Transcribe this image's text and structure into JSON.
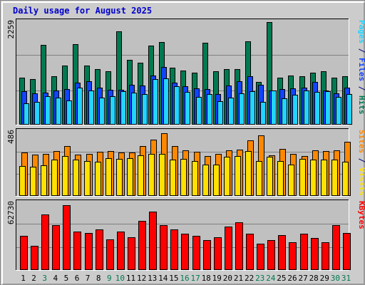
{
  "title": "Daily usage for August 2025",
  "colors": {
    "hits": "#007a50",
    "files": "#1144ff",
    "pages": "#22d4ff",
    "visits": "#ffe000",
    "sites": "#ff8800",
    "kbytes": "#ff0000",
    "weekday_label": "#000000",
    "weekend_label": "#007a50"
  },
  "chart_data": [
    {
      "type": "bar",
      "max_label": "2259",
      "ylim": [
        0,
        2259
      ],
      "categories": [
        "1",
        "2",
        "3",
        "4",
        "5",
        "6",
        "7",
        "8",
        "9",
        "10",
        "11",
        "12",
        "13",
        "14",
        "15",
        "16",
        "17",
        "18",
        "19",
        "20",
        "21",
        "22",
        "23",
        "24",
        "25",
        "26",
        "27",
        "28",
        "29",
        "30",
        "31"
      ],
      "weekend_days": [
        "3",
        "9",
        "10",
        "16",
        "17",
        "23",
        "24",
        "30",
        "31"
      ],
      "side_labels": [
        {
          "text": "Pages",
          "color": "#22d4ff"
        },
        {
          "text": " / ",
          "color": "#000080"
        },
        {
          "text": "Files",
          "color": "#1144ff"
        },
        {
          "text": " / ",
          "color": "#000080"
        },
        {
          "text": "Hits",
          "color": "#007a50"
        }
      ],
      "series": [
        {
          "name": "Hits",
          "values": [
            1040,
            1000,
            1760,
            1060,
            1300,
            1780,
            1300,
            1230,
            1180,
            2060,
            1430,
            1360,
            1740,
            1820,
            1260,
            1190,
            1140,
            1810,
            1170,
            1220,
            1230,
            1840,
            940,
            2300,
            1040,
            1080,
            1070,
            1140,
            1170,
            1030,
            1070
          ]
        },
        {
          "name": "Files",
          "values": [
            740,
            690,
            700,
            750,
            790,
            930,
            950,
            810,
            770,
            770,
            880,
            870,
            1090,
            1270,
            920,
            850,
            800,
            780,
            670,
            870,
            960,
            1070,
            880,
            760,
            780,
            800,
            810,
            940,
            760,
            690,
            820
          ]
        },
        {
          "name": "Pages",
          "values": [
            470,
            500,
            630,
            600,
            530,
            810,
            750,
            600,
            620,
            740,
            710,
            680,
            1010,
            1020,
            840,
            720,
            610,
            670,
            520,
            600,
            690,
            730,
            500,
            750,
            580,
            660,
            750,
            720,
            730,
            610,
            670
          ]
        }
      ]
    },
    {
      "type": "bar",
      "max_label": "486",
      "ylim": [
        0,
        486
      ],
      "categories": [
        "1",
        "2",
        "3",
        "4",
        "5",
        "6",
        "7",
        "8",
        "9",
        "10",
        "11",
        "12",
        "13",
        "14",
        "15",
        "16",
        "17",
        "18",
        "19",
        "20",
        "21",
        "22",
        "23",
        "24",
        "25",
        "26",
        "27",
        "28",
        "29",
        "30",
        "31"
      ],
      "side_labels": [
        {
          "text": "Sites",
          "color": "#ff8800"
        },
        {
          "text": " / ",
          "color": "#000080"
        },
        {
          "text": "Visits",
          "color": "#ffe000"
        }
      ],
      "series": [
        {
          "name": "Visits",
          "values": [
            227,
            223,
            230,
            278,
            304,
            278,
            264,
            260,
            288,
            279,
            288,
            310,
            320,
            318,
            276,
            282,
            265,
            240,
            240,
            295,
            301,
            340,
            267,
            299,
            265,
            239,
            280,
            275,
            273,
            274,
            260
          ]
        },
        {
          "name": "Sites",
          "values": [
            330,
            315,
            320,
            340,
            378,
            312,
            320,
            336,
            340,
            331,
            328,
            380,
            428,
            473,
            376,
            346,
            336,
            300,
            318,
            343,
            351,
            420,
            458,
            307,
            356,
            320,
            302,
            343,
            342,
            347,
            410
          ]
        }
      ]
    },
    {
      "type": "bar",
      "max_label": "62730",
      "ylim": [
        0,
        62730
      ],
      "categories": [
        "1",
        "2",
        "3",
        "4",
        "5",
        "6",
        "7",
        "8",
        "9",
        "10",
        "11",
        "12",
        "13",
        "14",
        "15",
        "16",
        "17",
        "18",
        "19",
        "20",
        "21",
        "22",
        "23",
        "24",
        "25",
        "26",
        "27",
        "28",
        "29",
        "30",
        "31"
      ],
      "side_labels": [
        {
          "text": "KBytes",
          "color": "#ff0000"
        }
      ],
      "series": [
        {
          "name": "KBytes",
          "values": [
            32000,
            23000,
            52000,
            42000,
            61000,
            36000,
            35000,
            38000,
            29000,
            36000,
            31000,
            46000,
            55000,
            42000,
            38000,
            34000,
            32000,
            28000,
            31000,
            41000,
            45000,
            34000,
            25000,
            28000,
            33000,
            26000,
            34000,
            30000,
            26000,
            42000,
            35000
          ]
        }
      ]
    }
  ]
}
